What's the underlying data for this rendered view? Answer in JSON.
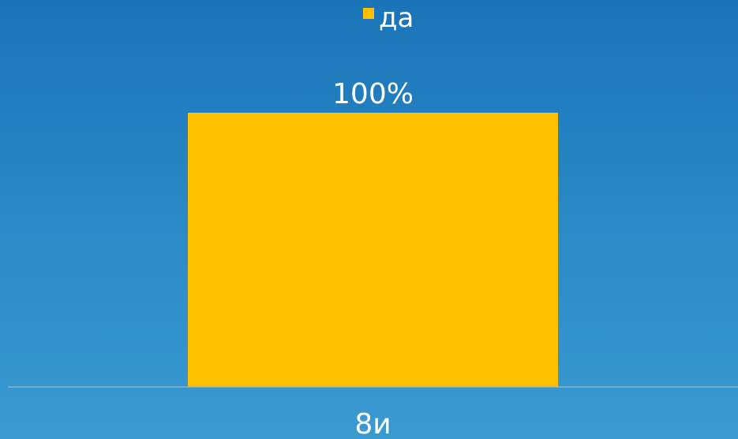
{
  "chart_data": {
    "type": "bar",
    "categories": [
      "8и"
    ],
    "series": [
      {
        "name": "да",
        "values": [
          100
        ],
        "color": "#ffc000"
      }
    ],
    "data_labels": [
      "100%"
    ],
    "ylim": [
      0,
      100
    ],
    "grid": false,
    "legend": {
      "position": "top",
      "items": [
        "да"
      ]
    },
    "value_unit": "%",
    "background": "#1f7bbf",
    "axis_line_color": "#9ab6cc"
  }
}
